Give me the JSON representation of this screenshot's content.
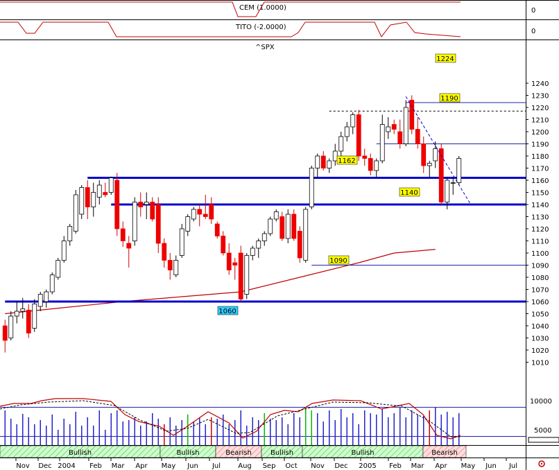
{
  "chart_data": {
    "type": "candlestick",
    "symbol_label": "^SPX",
    "indicators": [
      {
        "label": "CEM (1.0000)",
        "axis_tick": "0"
      },
      {
        "label": "TITO (-2.0000)",
        "axis_tick": "0"
      }
    ],
    "y_ticks": [
      1010,
      1020,
      1030,
      1040,
      1050,
      1060,
      1070,
      1080,
      1090,
      1100,
      1110,
      1120,
      1130,
      1140,
      1150,
      1160,
      1170,
      1180,
      1190,
      1200,
      1210,
      1220,
      1230,
      1240
    ],
    "ylim": [
      1010,
      1243
    ],
    "x_ticks": [
      "Nov",
      "Dec",
      "2004",
      "Feb",
      "Mar",
      "Apr",
      "May",
      "Jun",
      "Jul",
      "Aug",
      "Sep",
      "Oct",
      "Nov",
      "Dec",
      "2005",
      "Feb",
      "Mar",
      "Apr",
      "May",
      "Jun",
      "Jul"
    ],
    "candles": [
      {
        "o": 1040,
        "h": 1045,
        "l": 1018,
        "c": 1028
      },
      {
        "o": 1030,
        "h": 1052,
        "l": 1028,
        "c": 1048
      },
      {
        "o": 1048,
        "h": 1060,
        "l": 1042,
        "c": 1052
      },
      {
        "o": 1052,
        "h": 1063,
        "l": 1046,
        "c": 1054
      },
      {
        "o": 1053,
        "h": 1058,
        "l": 1030,
        "c": 1034
      },
      {
        "o": 1038,
        "h": 1062,
        "l": 1035,
        "c": 1058
      },
      {
        "o": 1056,
        "h": 1068,
        "l": 1052,
        "c": 1066
      },
      {
        "o": 1060,
        "h": 1070,
        "l": 1055,
        "c": 1068
      },
      {
        "o": 1068,
        "h": 1084,
        "l": 1066,
        "c": 1082
      },
      {
        "o": 1080,
        "h": 1096,
        "l": 1078,
        "c": 1094
      },
      {
        "o": 1094,
        "h": 1114,
        "l": 1092,
        "c": 1110
      },
      {
        "o": 1110,
        "h": 1124,
        "l": 1106,
        "c": 1122
      },
      {
        "o": 1118,
        "h": 1152,
        "l": 1116,
        "c": 1148
      },
      {
        "o": 1132,
        "h": 1156,
        "l": 1128,
        "c": 1154
      },
      {
        "o": 1154,
        "h": 1160,
        "l": 1128,
        "c": 1138
      },
      {
        "o": 1138,
        "h": 1158,
        "l": 1130,
        "c": 1150
      },
      {
        "o": 1146,
        "h": 1160,
        "l": 1140,
        "c": 1156
      },
      {
        "o": 1150,
        "h": 1158,
        "l": 1146,
        "c": 1148
      },
      {
        "o": 1150,
        "h": 1163,
        "l": 1148,
        "c": 1162
      },
      {
        "o": 1160,
        "h": 1166,
        "l": 1114,
        "c": 1120
      },
      {
        "o": 1120,
        "h": 1126,
        "l": 1105,
        "c": 1110
      },
      {
        "o": 1108,
        "h": 1114,
        "l": 1088,
        "c": 1104
      },
      {
        "o": 1110,
        "h": 1146,
        "l": 1106,
        "c": 1142
      },
      {
        "o": 1142,
        "h": 1150,
        "l": 1130,
        "c": 1138
      },
      {
        "o": 1140,
        "h": 1150,
        "l": 1128,
        "c": 1142
      },
      {
        "o": 1142,
        "h": 1146,
        "l": 1126,
        "c": 1128
      },
      {
        "o": 1140,
        "h": 1146,
        "l": 1100,
        "c": 1108
      },
      {
        "o": 1108,
        "h": 1112,
        "l": 1088,
        "c": 1094
      },
      {
        "o": 1094,
        "h": 1100,
        "l": 1078,
        "c": 1086
      },
      {
        "o": 1082,
        "h": 1098,
        "l": 1080,
        "c": 1094
      },
      {
        "o": 1098,
        "h": 1124,
        "l": 1096,
        "c": 1120
      },
      {
        "o": 1118,
        "h": 1132,
        "l": 1114,
        "c": 1130
      },
      {
        "o": 1128,
        "h": 1138,
        "l": 1126,
        "c": 1136
      },
      {
        "o": 1136,
        "h": 1140,
        "l": 1122,
        "c": 1132
      },
      {
        "o": 1132,
        "h": 1148,
        "l": 1128,
        "c": 1130
      },
      {
        "o": 1140,
        "h": 1146,
        "l": 1124,
        "c": 1128
      },
      {
        "o": 1124,
        "h": 1126,
        "l": 1112,
        "c": 1114
      },
      {
        "o": 1114,
        "h": 1118,
        "l": 1098,
        "c": 1100
      },
      {
        "o": 1100,
        "h": 1108,
        "l": 1082,
        "c": 1086
      },
      {
        "o": 1092,
        "h": 1096,
        "l": 1078,
        "c": 1090
      },
      {
        "o": 1100,
        "h": 1106,
        "l": 1060,
        "c": 1062
      },
      {
        "o": 1066,
        "h": 1100,
        "l": 1062,
        "c": 1098
      },
      {
        "o": 1098,
        "h": 1106,
        "l": 1094,
        "c": 1104
      },
      {
        "o": 1104,
        "h": 1112,
        "l": 1096,
        "c": 1110
      },
      {
        "o": 1110,
        "h": 1118,
        "l": 1106,
        "c": 1116
      },
      {
        "o": 1116,
        "h": 1130,
        "l": 1114,
        "c": 1128
      },
      {
        "o": 1128,
        "h": 1136,
        "l": 1126,
        "c": 1134
      },
      {
        "o": 1130,
        "h": 1134,
        "l": 1110,
        "c": 1112
      },
      {
        "o": 1112,
        "h": 1136,
        "l": 1108,
        "c": 1132
      },
      {
        "o": 1132,
        "h": 1136,
        "l": 1110,
        "c": 1112
      },
      {
        "o": 1118,
        "h": 1122,
        "l": 1092,
        "c": 1096
      },
      {
        "o": 1094,
        "h": 1138,
        "l": 1092,
        "c": 1136
      },
      {
        "o": 1138,
        "h": 1172,
        "l": 1136,
        "c": 1170
      },
      {
        "o": 1170,
        "h": 1182,
        "l": 1162,
        "c": 1180
      },
      {
        "o": 1180,
        "h": 1184,
        "l": 1168,
        "c": 1170
      },
      {
        "o": 1170,
        "h": 1178,
        "l": 1166,
        "c": 1176
      },
      {
        "o": 1176,
        "h": 1190,
        "l": 1172,
        "c": 1184
      },
      {
        "o": 1184,
        "h": 1200,
        "l": 1180,
        "c": 1196
      },
      {
        "o": 1196,
        "h": 1208,
        "l": 1192,
        "c": 1204
      },
      {
        "o": 1204,
        "h": 1216,
        "l": 1198,
        "c": 1214
      },
      {
        "o": 1214,
        "h": 1218,
        "l": 1176,
        "c": 1180
      },
      {
        "o": 1180,
        "h": 1186,
        "l": 1172,
        "c": 1178
      },
      {
        "o": 1178,
        "h": 1182,
        "l": 1164,
        "c": 1168
      },
      {
        "o": 1168,
        "h": 1178,
        "l": 1162,
        "c": 1176
      },
      {
        "o": 1176,
        "h": 1214,
        "l": 1174,
        "c": 1206
      },
      {
        "o": 1200,
        "h": 1212,
        "l": 1194,
        "c": 1204
      },
      {
        "o": 1206,
        "h": 1210,
        "l": 1198,
        "c": 1202
      },
      {
        "o": 1200,
        "h": 1210,
        "l": 1186,
        "c": 1190
      },
      {
        "o": 1190,
        "h": 1226,
        "l": 1188,
        "c": 1220
      },
      {
        "o": 1226,
        "h": 1230,
        "l": 1198,
        "c": 1202
      },
      {
        "o": 1202,
        "h": 1212,
        "l": 1186,
        "c": 1190
      },
      {
        "o": 1190,
        "h": 1196,
        "l": 1166,
        "c": 1172
      },
      {
        "o": 1172,
        "h": 1176,
        "l": 1162,
        "c": 1174
      },
      {
        "o": 1176,
        "h": 1192,
        "l": 1170,
        "c": 1186
      },
      {
        "o": 1186,
        "h": 1190,
        "l": 1140,
        "c": 1142
      },
      {
        "o": 1142,
        "h": 1162,
        "l": 1136,
        "c": 1160
      },
      {
        "o": 1158,
        "h": 1162,
        "l": 1148,
        "c": 1158
      },
      {
        "o": 1158,
        "h": 1180,
        "l": 1156,
        "c": 1178
      }
    ],
    "moving_average": [
      [
        0,
        1050
      ],
      [
        10,
        1055
      ],
      [
        20,
        1060
      ],
      [
        30,
        1064
      ],
      [
        40,
        1068
      ],
      [
        50,
        1080
      ],
      [
        60,
        1092
      ],
      [
        66,
        1100
      ],
      [
        73,
        1103
      ]
    ],
    "horizontal_levels": [
      {
        "value": 1162,
        "label": "1162",
        "start_index": 14
      },
      {
        "value": 1140,
        "label": "1140",
        "start_index": 18
      },
      {
        "value": 1060,
        "label": "1060",
        "start_index": 0
      },
      {
        "value": 1090,
        "label": "1090",
        "start_index": 52
      },
      {
        "value": 1190,
        "label": "1190",
        "start_index": 63
      },
      {
        "value": 1224,
        "label": "1224",
        "start_index": 68
      },
      {
        "value": 1217,
        "label": "",
        "start_index": 55
      }
    ],
    "trendline": {
      "from": [
        68,
        1229
      ],
      "to": [
        79,
        1140
      ]
    },
    "lower_panel": {
      "y_ticks": [
        "10000",
        "5000"
      ],
      "market_phases": [
        "Bullish",
        "Bullish",
        "Bearish",
        "Bullish",
        "Bullish",
        "Bearish"
      ]
    }
  }
}
